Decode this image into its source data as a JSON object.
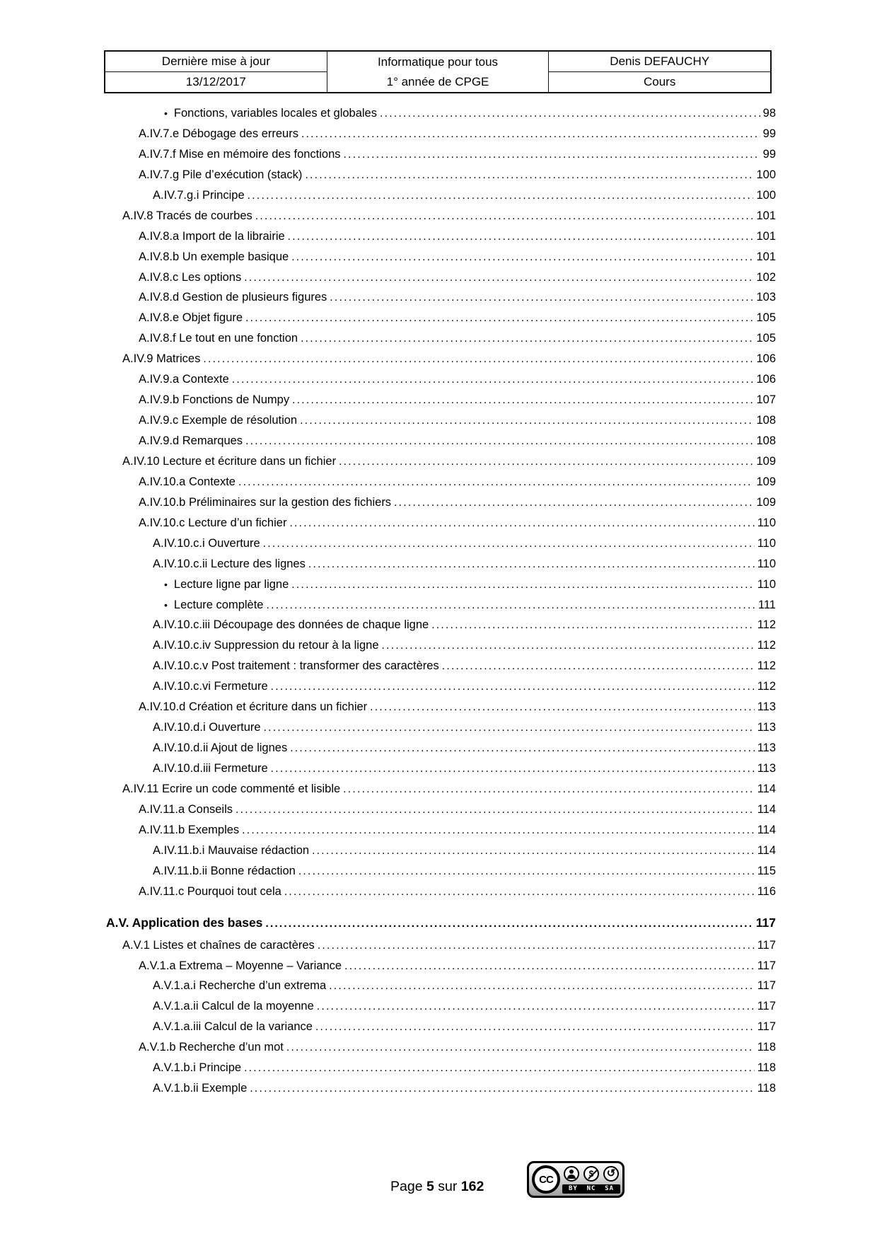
{
  "header_table": {
    "left": {
      "top": "Dernière mise à jour",
      "bottom": "13/12/2017"
    },
    "middle": {
      "top": "Informatique pour tous",
      "bottom": "1° année de CPGE"
    },
    "right": {
      "top": "Denis DEFAUCHY",
      "bottom": "Cours"
    }
  },
  "toc": {
    "bullet_char": "•",
    "leader_char": ".",
    "entries": [
      {
        "label": "Fonctions, variables locales et globales",
        "page": "98",
        "level": 4,
        "bullet": true
      },
      {
        "label": "A.IV.7.e Débogage des erreurs",
        "page": "99",
        "level": 2
      },
      {
        "label": "A.IV.7.f Mise en mémoire des fonctions",
        "page": "99",
        "level": 2
      },
      {
        "label": "A.IV.7.g Pile d’exécution (stack)",
        "page": "100",
        "level": 2
      },
      {
        "label": "A.IV.7.g.i Principe",
        "page": "100",
        "level": 3
      },
      {
        "label": "A.IV.8 Tracés de courbes",
        "page": "101",
        "level": 1
      },
      {
        "label": "A.IV.8.a Import de la librairie",
        "page": "101",
        "level": 2
      },
      {
        "label": "A.IV.8.b Un exemple basique",
        "page": "101",
        "level": 2
      },
      {
        "label": "A.IV.8.c Les options",
        "page": "102",
        "level": 2
      },
      {
        "label": "A.IV.8.d Gestion de plusieurs figures",
        "page": "103",
        "level": 2
      },
      {
        "label": "A.IV.8.e Objet figure",
        "page": "105",
        "level": 2
      },
      {
        "label": "A.IV.8.f Le tout en une fonction",
        "page": "105",
        "level": 2
      },
      {
        "label": "A.IV.9 Matrices",
        "page": "106",
        "level": 1
      },
      {
        "label": "A.IV.9.a Contexte",
        "page": "106",
        "level": 2
      },
      {
        "label": "A.IV.9.b Fonctions de Numpy",
        "page": "107",
        "level": 2
      },
      {
        "label": "A.IV.9.c Exemple de résolution",
        "page": "108",
        "level": 2
      },
      {
        "label": "A.IV.9.d Remarques",
        "page": "108",
        "level": 2
      },
      {
        "label": "A.IV.10 Lecture et écriture dans un fichier",
        "page": "109",
        "level": 1
      },
      {
        "label": "A.IV.10.a Contexte",
        "page": "109",
        "level": 2
      },
      {
        "label": "A.IV.10.b Préliminaires sur la gestion des fichiers",
        "page": "109",
        "level": 2
      },
      {
        "label": "A.IV.10.c Lecture d’un fichier",
        "page": "110",
        "level": 2
      },
      {
        "label": "A.IV.10.c.i Ouverture",
        "page": "110",
        "level": 3
      },
      {
        "label": "A.IV.10.c.ii Lecture des lignes",
        "page": "110",
        "level": 3
      },
      {
        "label": "Lecture ligne par ligne",
        "page": "110",
        "level": 4,
        "bullet": true
      },
      {
        "label": "Lecture complète",
        "page": "111",
        "level": 4,
        "bullet": true
      },
      {
        "label": "A.IV.10.c.iii Découpage des données de chaque ligne",
        "page": "112",
        "level": 3
      },
      {
        "label": "A.IV.10.c.iv Suppression du retour à la ligne",
        "page": "112",
        "level": 3
      },
      {
        "label": "A.IV.10.c.v Post traitement : transformer des caractères",
        "page": "112",
        "level": 3
      },
      {
        "label": "A.IV.10.c.vi Fermeture",
        "page": "112",
        "level": 3
      },
      {
        "label": "A.IV.10.d Création et écriture dans un fichier",
        "page": "113",
        "level": 2
      },
      {
        "label": "A.IV.10.d.i Ouverture",
        "page": "113",
        "level": 3
      },
      {
        "label": "A.IV.10.d.ii Ajout de lignes",
        "page": "113",
        "level": 3
      },
      {
        "label": "A.IV.10.d.iii Fermeture",
        "page": "113",
        "level": 3
      },
      {
        "label": "A.IV.11 Ecrire un code commenté et lisible",
        "page": "114",
        "level": 1
      },
      {
        "label": "A.IV.11.a Conseils",
        "page": "114",
        "level": 2
      },
      {
        "label": "A.IV.11.b Exemples",
        "page": "114",
        "level": 2
      },
      {
        "label": "A.IV.11.b.i Mauvaise rédaction",
        "page": "114",
        "level": 3
      },
      {
        "label": "A.IV.11.b.ii Bonne rédaction",
        "page": "115",
        "level": 3
      },
      {
        "label": "A.IV.11.c Pourquoi tout cela",
        "page": "116",
        "level": 2
      },
      {
        "label": "A.V. Application des bases",
        "page": "117",
        "level": 0,
        "bold": true
      },
      {
        "label": "A.V.1 Listes et chaînes de caractères",
        "page": "117",
        "level": 1
      },
      {
        "label": "A.V.1.a Extrema – Moyenne – Variance",
        "page": "117",
        "level": 2
      },
      {
        "label": "A.V.1.a.i Recherche d’un extrema",
        "page": "117",
        "level": 3
      },
      {
        "label": "A.V.1.a.ii Calcul de la moyenne",
        "page": "117",
        "level": 3
      },
      {
        "label": "A.V.1.a.iii Calcul de la variance",
        "page": "117",
        "level": 3
      },
      {
        "label": "A.V.1.b Recherche d’un mot",
        "page": "118",
        "level": 2
      },
      {
        "label": "A.V.1.b.i Principe",
        "page": "118",
        "level": 3
      },
      {
        "label": "A.V.1.b.ii Exemple",
        "page": "118",
        "level": 3
      }
    ]
  },
  "footer": {
    "word_page": "Page",
    "page_current": "5",
    "word_sur": "sur",
    "page_total": "162",
    "license": {
      "cc_text": "CC",
      "nc_glyph": "$",
      "sa_glyph": "↺",
      "labels": [
        "BY",
        "NC",
        "SA"
      ]
    }
  }
}
